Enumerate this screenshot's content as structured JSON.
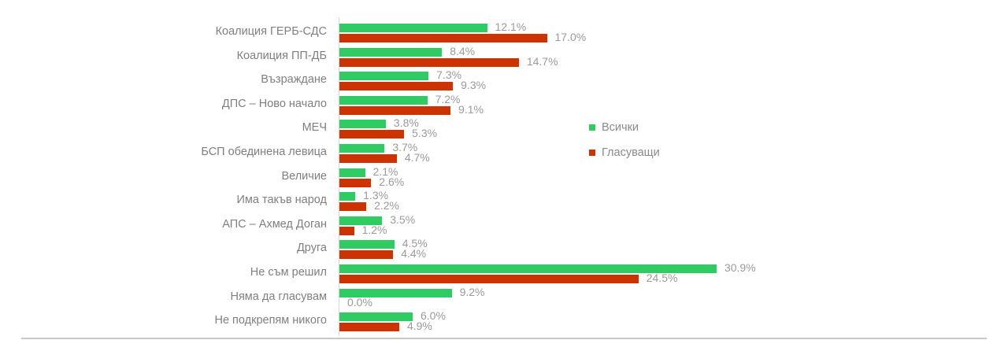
{
  "chart_data": {
    "type": "bar",
    "orientation": "horizontal",
    "title": "",
    "xlabel": "",
    "ylabel": "",
    "xlim": [
      0,
      31
    ],
    "grid": false,
    "legend_position": "right",
    "categories": [
      "Коалиция ГЕРБ-СДС",
      "Коалиция ПП-ДБ",
      "Възраждане",
      "ДПС – Ново начало",
      "МЕЧ",
      "БСП обединена левица",
      "Величие",
      "Има такъв народ",
      "АПС – Ахмед Доган",
      "Друга",
      "Не съм решил",
      "Няма да гласувам",
      "Не подкрепям никого"
    ],
    "series": [
      {
        "name": "Всички",
        "color": "#2ecc63",
        "values": [
          12.1,
          8.4,
          7.3,
          7.2,
          3.8,
          3.7,
          2.1,
          1.3,
          3.5,
          4.5,
          30.9,
          9.2,
          6.0
        ],
        "labels": [
          "12.1%",
          "8.4%",
          "7.3%",
          "7.2%",
          "3.8%",
          "3.7%",
          "2.1%",
          "1.3%",
          "3.5%",
          "4.5%",
          "30.9%",
          "9.2%",
          "6.0%"
        ]
      },
      {
        "name": "Гласуващи",
        "color": "#cc3300",
        "values": [
          17.0,
          14.7,
          9.3,
          9.1,
          5.3,
          4.7,
          2.6,
          2.2,
          1.2,
          4.4,
          24.5,
          0.0,
          4.9
        ],
        "labels": [
          "17.0%",
          "14.7%",
          "9.3%",
          "9.1%",
          "5.3%",
          "4.7%",
          "2.6%",
          "2.2%",
          "1.2%",
          "4.4%",
          "24.5%",
          "0.0%",
          "4.9%"
        ]
      }
    ]
  },
  "legend": {
    "items": [
      {
        "label": "Всички",
        "color": "#2ecc63"
      },
      {
        "label": "Гласуващи",
        "color": "#cc3300"
      }
    ]
  }
}
